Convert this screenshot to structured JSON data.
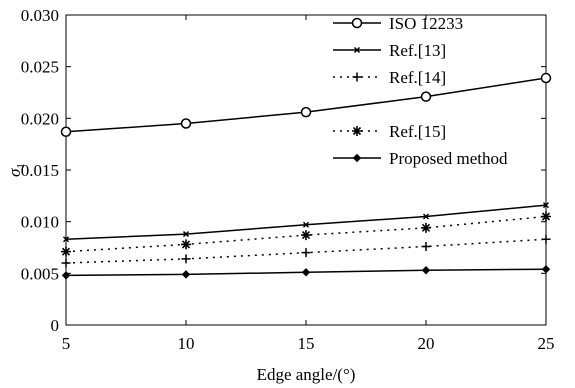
{
  "chart_data": {
    "type": "line",
    "xlabel": "Edge angle/(°)",
    "ylabel": "σ",
    "ylabel_sub": "1",
    "xlim": [
      5,
      25
    ],
    "ylim": [
      0,
      0.03
    ],
    "x_ticks": [
      "5",
      "10",
      "15",
      "20",
      "25"
    ],
    "y_ticks": [
      "0",
      "0.005",
      "0.010",
      "0.015",
      "0.020",
      "0.025",
      "0.030"
    ],
    "grid": false,
    "legend_position": "top-right",
    "x": [
      5,
      10,
      15,
      20,
      25
    ],
    "series": [
      {
        "name": "ISO 12233",
        "values": [
          0.0187,
          0.0195,
          0.0206,
          0.0221,
          0.0239
        ],
        "line": "solid",
        "marker": "circle",
        "color": "#000000"
      },
      {
        "name": "Ref.[13]",
        "values": [
          0.0083,
          0.0088,
          0.0097,
          0.0105,
          0.0116
        ],
        "line": "solid",
        "marker": "x",
        "color": "#000000"
      },
      {
        "name": "Ref.[14]",
        "values": [
          0.006,
          0.0064,
          0.007,
          0.0076,
          0.0083
        ],
        "line": "dotted",
        "marker": "plus",
        "color": "#000000"
      },
      {
        "name": "Ref.[15]",
        "values": [
          0.0071,
          0.0078,
          0.0087,
          0.0094,
          0.0105
        ],
        "line": "dotted",
        "marker": "star",
        "color": "#000000"
      },
      {
        "name": "Proposed method",
        "values": [
          0.0048,
          0.0049,
          0.0051,
          0.0053,
          0.0054
        ],
        "line": "solid",
        "marker": "diamond",
        "color": "#000000"
      }
    ]
  }
}
